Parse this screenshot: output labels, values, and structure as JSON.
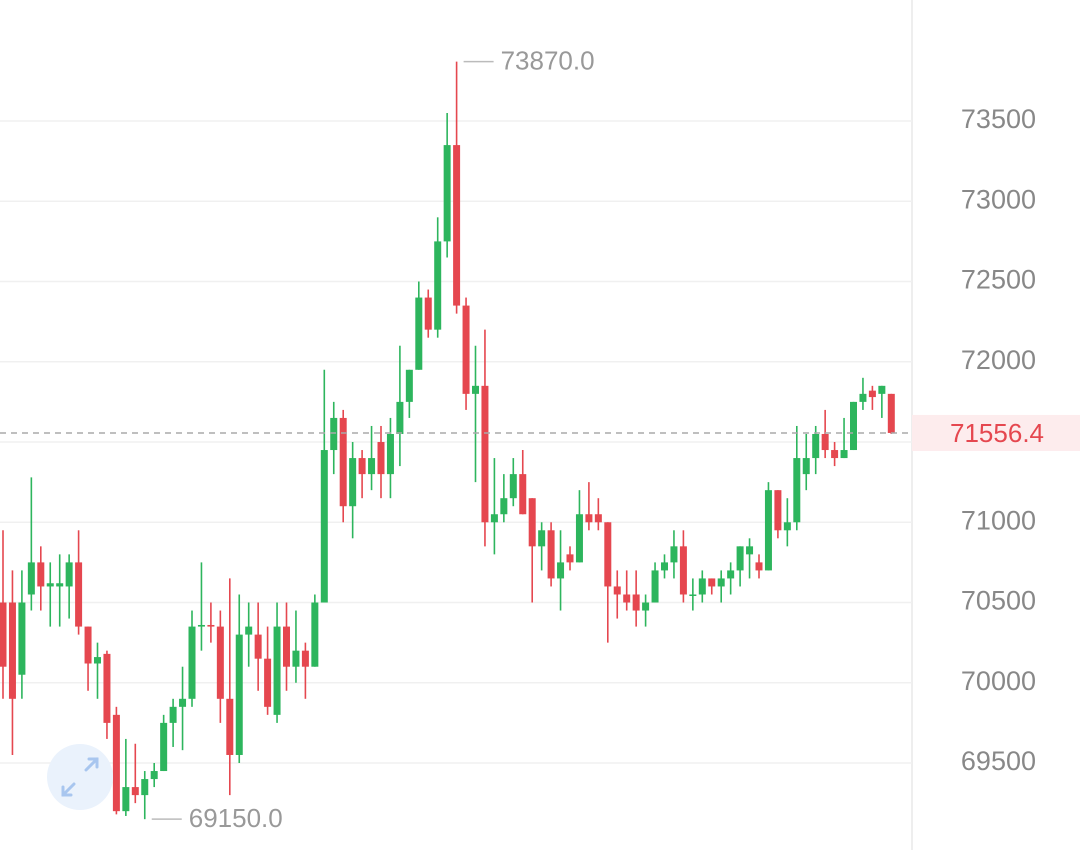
{
  "chart_data": {
    "type": "candlestick",
    "up_color": "#2db55d",
    "down_color": "#e5474f",
    "ylim": [
      68958,
      74254
    ],
    "yticks": [
      69500,
      70000,
      70500,
      71000,
      71500,
      72000,
      72500,
      73000,
      73500
    ],
    "grid": true,
    "series": {
      "open": [
        70500,
        70500,
        70050,
        70550,
        70750,
        70600,
        70600,
        70600,
        70750,
        70350,
        70120,
        70180,
        69800,
        69200,
        69350,
        69300,
        69400,
        69450,
        69750,
        69850,
        69900,
        70350,
        70360,
        70350,
        69900,
        69550,
        70300,
        70300,
        70150,
        69800,
        70350,
        70100,
        70200,
        70100,
        70500,
        71450,
        71650,
        71100,
        71400,
        71300,
        71500,
        71300,
        71550,
        71750,
        71950,
        72400,
        72200,
        72750,
        73350,
        72350,
        71800,
        71850,
        71000,
        71050,
        71150,
        71300,
        71150,
        70850,
        70950,
        70650,
        70800,
        70750,
        71050,
        71050,
        71000,
        70600,
        70550,
        70550,
        70450,
        70500,
        70700,
        70750,
        70850,
        70550,
        70550,
        70650,
        70600,
        70650,
        70700,
        70800,
        70750,
        70700,
        71200,
        70950,
        71000,
        71300,
        71400,
        71550,
        71450,
        71400,
        71450,
        71750,
        71820,
        71800,
        71800
      ],
      "high": [
        70950,
        70700,
        70700,
        71280,
        70850,
        70750,
        70800,
        70800,
        70950,
        70350,
        70250,
        70200,
        69850,
        69650,
        69620,
        69450,
        69500,
        69800,
        69900,
        70100,
        70450,
        70750,
        70500,
        70450,
        70650,
        70550,
        70500,
        70500,
        70350,
        70500,
        70500,
        70450,
        70250,
        70550,
        71950,
        71750,
        71700,
        71500,
        71450,
        71600,
        71600,
        71650,
        72100,
        71950,
        72500,
        72450,
        72900,
        73550,
        73870,
        72400,
        72100,
        72200,
        71400,
        71300,
        71400,
        71450,
        71150,
        71000,
        71000,
        70950,
        70850,
        71200,
        71250,
        71150,
        71000,
        70700,
        70700,
        70700,
        70550,
        70750,
        70800,
        70950,
        70950,
        70650,
        70700,
        70650,
        70700,
        70750,
        70850,
        70900,
        70800,
        71250,
        71200,
        71150,
        71600,
        71550,
        71600,
        71700,
        71500,
        71650,
        71750,
        71900,
        71850,
        71850,
        71800
      ],
      "low": [
        69900,
        69550,
        69900,
        70450,
        70450,
        70350,
        70350,
        70400,
        70300,
        69950,
        69900,
        69650,
        69180,
        69170,
        69250,
        69150,
        69350,
        69450,
        69600,
        69580,
        69850,
        70200,
        70250,
        69750,
        69300,
        69500,
        70100,
        69950,
        69800,
        69750,
        69950,
        70000,
        69900,
        70100,
        70500,
        71300,
        71000,
        70900,
        71150,
        71200,
        71150,
        71150,
        71350,
        71650,
        71950,
        72150,
        72150,
        72650,
        72300,
        71700,
        71250,
        70850,
        70800,
        71000,
        71100,
        71050,
        70500,
        70700,
        70600,
        70450,
        70700,
        70750,
        70950,
        70950,
        70250,
        70400,
        70450,
        70350,
        70350,
        70500,
        70650,
        70650,
        70500,
        70450,
        70500,
        70550,
        70500,
        70550,
        70600,
        70650,
        70650,
        70700,
        70900,
        70850,
        70950,
        71200,
        71300,
        71400,
        71350,
        71400,
        71450,
        71700,
        71700,
        71650,
        71550
      ],
      "close": [
        70100,
        69900,
        70500,
        70750,
        70600,
        70620,
        70620,
        70750,
        70350,
        70120,
        70160,
        69750,
        69200,
        69350,
        69300,
        69400,
        69450,
        69750,
        69850,
        69900,
        70350,
        70360,
        70350,
        69900,
        69550,
        70300,
        70350,
        70150,
        69850,
        70350,
        70100,
        70200,
        70100,
        70500,
        71450,
        71650,
        71100,
        71400,
        71300,
        71400,
        71300,
        71550,
        71750,
        71950,
        72400,
        72200,
        72750,
        73350,
        72350,
        71800,
        71850,
        71000,
        71050,
        71150,
        71300,
        71050,
        70850,
        70950,
        70650,
        70750,
        70750,
        71050,
        71000,
        71000,
        70600,
        70550,
        70500,
        70450,
        70500,
        70700,
        70750,
        70850,
        70550,
        70550,
        70650,
        70600,
        70650,
        70700,
        70850,
        70850,
        70700,
        71200,
        70950,
        71000,
        71400,
        71400,
        71550,
        71450,
        71400,
        71450,
        71750,
        71800,
        71780,
        71850,
        71556.4
      ]
    },
    "annotations": [
      {
        "value": 73870,
        "label": "73870.0"
      },
      {
        "value": 69150,
        "label": "69150.0"
      }
    ],
    "last_price": 71556.4
  }
}
